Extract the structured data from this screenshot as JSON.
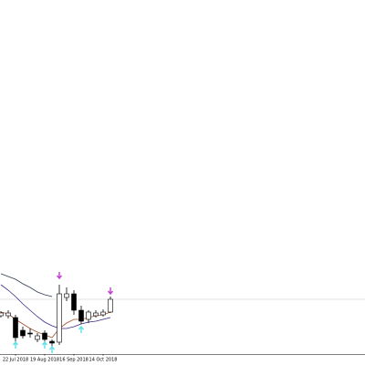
{
  "chart_data": {
    "type": "candlestick",
    "categories": [
      null,
      null,
      "22 Jul 2018",
      null,
      null,
      null,
      "19 Aug 2018",
      null,
      null,
      null,
      "16 Sep 2018",
      null,
      null,
      null,
      "14 Oct 2018",
      null
    ],
    "open": [
      42,
      42,
      40,
      26,
      23,
      16,
      23,
      14,
      13,
      62,
      66,
      48,
      38,
      42,
      43,
      46
    ],
    "high": [
      47,
      48,
      43,
      30,
      28,
      23,
      26,
      16,
      76,
      73,
      70,
      53,
      48,
      48,
      49,
      63
    ],
    "low": [
      40,
      39,
      13,
      17,
      18,
      13,
      10,
      6,
      10,
      58,
      43,
      33,
      34,
      40,
      41,
      45
    ],
    "close": [
      45,
      45,
      18,
      20,
      22,
      20,
      16,
      12,
      66,
      66,
      48,
      36,
      46,
      45,
      46,
      60
    ],
    "ylim": [
      0,
      388
    ],
    "lines": [
      {
        "color": "#2f3d4f",
        "values": [
          88,
          85,
          82,
          77,
          73,
          68,
          65,
          63,
          null,
          null,
          null,
          null,
          null,
          null,
          null,
          null
        ]
      },
      {
        "color": "#3b2a86",
        "values": [
          76,
          70,
          63,
          55,
          48,
          41,
          35,
          31,
          28,
          28,
          30,
          33,
          35,
          36,
          38,
          40
        ]
      },
      {
        "color": "#a0522d",
        "values": [
          46,
          44,
          38,
          33,
          28,
          24,
          21,
          18,
          28,
          34,
          38,
          38,
          40,
          42,
          43,
          46
        ]
      }
    ],
    "up_signals": {
      "color": "#5ee0e8",
      "index": [
        2,
        6,
        7,
        11
      ],
      "values": [
        13,
        13,
        8,
        30
      ]
    },
    "down_signals": {
      "color": "#c040d0",
      "index": [
        8,
        15
      ],
      "values": [
        83,
        66
      ]
    },
    "price_line": {
      "value": 60,
      "color": "#c8c8c8"
    }
  }
}
